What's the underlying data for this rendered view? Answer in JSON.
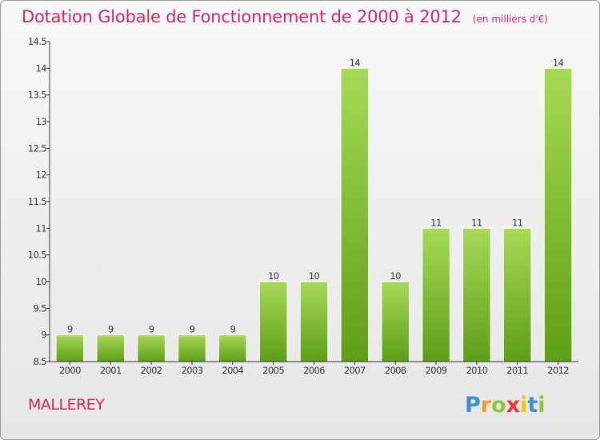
{
  "title": "Dotation Globale de Fonctionnement de 2000 à 2012",
  "subtitle": "(en milliers d'€)",
  "commune": "MALLEREY",
  "logo": {
    "letters": [
      "P",
      "r",
      "o",
      "x",
      "i",
      "t",
      "i"
    ],
    "colors": [
      "#3b8fd6",
      "#f39c1f",
      "#8cc63f",
      "#e8392f",
      "#f5c400",
      "#3b8fd6",
      "#8cc63f"
    ]
  },
  "colors": {
    "bar_top": "#a6d957",
    "bar_bottom": "#5e9e16",
    "title": "#cc2a55",
    "axis": "#333333"
  },
  "chart_data": {
    "type": "bar",
    "categories": [
      "2000",
      "2001",
      "2002",
      "2003",
      "2004",
      "2005",
      "2006",
      "2007",
      "2008",
      "2009",
      "2010",
      "2011",
      "2012"
    ],
    "values": [
      9,
      9,
      9,
      9,
      9,
      10,
      10,
      14,
      10,
      11,
      11,
      11,
      14
    ],
    "data_labels": [
      "9",
      "9",
      "9",
      "9",
      "9",
      "10",
      "10",
      "14",
      "10",
      "11",
      "11",
      "11",
      "14"
    ],
    "ylim": [
      8.5,
      14.5
    ],
    "yticks": [
      8.5,
      9,
      9.5,
      10,
      10.5,
      11,
      11.5,
      12,
      12.5,
      13,
      13.5,
      14,
      14.5
    ],
    "ytick_labels": [
      "8.5",
      "9",
      "9.5",
      "10",
      "10.5",
      "11",
      "11.5",
      "12",
      "12.5",
      "13",
      "13.5",
      "14",
      "14.5"
    ],
    "grid": false,
    "legend": "none"
  }
}
